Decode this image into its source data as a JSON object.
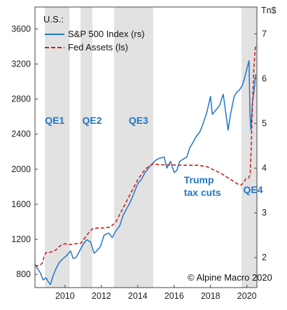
{
  "chart_data": {
    "type": "line",
    "title": "U.S.:",
    "left_unit": "",
    "right_unit": "Tn$",
    "copyright": "© Alpine Macro 2020",
    "x_ticks": [
      "2010",
      "2012",
      "2014",
      "2016",
      "2018",
      "2020"
    ],
    "xlim": [
      2008.35,
      2020.55
    ],
    "left_axis": {
      "ylim": [
        650,
        3850
      ],
      "ticks": [
        "800",
        "1200",
        "1600",
        "2000",
        "2400",
        "2800",
        "3200",
        "3600"
      ]
    },
    "right_axis": {
      "ylim": [
        1.33,
        7.6
      ],
      "ticks": [
        "2",
        "3",
        "4",
        "5",
        "6",
        "7"
      ]
    },
    "shaded_periods": [
      {
        "label": "QE1",
        "start": 2008.9,
        "end": 2010.25
      },
      {
        "label": "QE2",
        "start": 2010.85,
        "end": 2011.5
      },
      {
        "label": "QE3",
        "start": 2012.7,
        "end": 2014.85
      },
      {
        "label": "QE4",
        "start": 2019.7,
        "end": 2020.55
      }
    ],
    "annotations": [
      {
        "id": "trump-tax-cuts",
        "lines": [
          "Trump",
          "tax cuts"
        ],
        "x": 2017.5
      }
    ],
    "legend": {
      "position": "top-left"
    },
    "colors": {
      "sp500": "#1f77c8",
      "fed": "#cc1f1f",
      "band": "#e2e2e2",
      "label": "#2277c4"
    },
    "series": [
      {
        "name": "S&P 500 Index (rs)",
        "axis": "right",
        "style": "solid",
        "points": [
          [
            2008.35,
            1.85
          ],
          [
            2008.5,
            1.75
          ],
          [
            2008.65,
            1.65
          ],
          [
            2008.8,
            1.5
          ],
          [
            2008.95,
            1.55
          ],
          [
            2009.1,
            1.45
          ],
          [
            2009.2,
            1.4
          ],
          [
            2009.35,
            1.6
          ],
          [
            2009.5,
            1.75
          ],
          [
            2009.7,
            1.9
          ],
          [
            2009.9,
            1.98
          ],
          [
            2010.1,
            2.05
          ],
          [
            2010.3,
            2.15
          ],
          [
            2010.45,
            1.98
          ],
          [
            2010.6,
            2.0
          ],
          [
            2010.8,
            2.15
          ],
          [
            2011.0,
            2.3
          ],
          [
            2011.2,
            2.4
          ],
          [
            2011.4,
            2.35
          ],
          [
            2011.6,
            2.1
          ],
          [
            2011.75,
            2.15
          ],
          [
            2011.95,
            2.25
          ],
          [
            2012.15,
            2.5
          ],
          [
            2012.4,
            2.55
          ],
          [
            2012.6,
            2.45
          ],
          [
            2012.8,
            2.6
          ],
          [
            2013.0,
            2.7
          ],
          [
            2013.2,
            2.95
          ],
          [
            2013.4,
            3.1
          ],
          [
            2013.6,
            3.25
          ],
          [
            2013.8,
            3.45
          ],
          [
            2014.0,
            3.65
          ],
          [
            2014.2,
            3.75
          ],
          [
            2014.4,
            3.9
          ],
          [
            2014.6,
            4.0
          ],
          [
            2014.8,
            4.1
          ],
          [
            2015.0,
            4.18
          ],
          [
            2015.2,
            4.22
          ],
          [
            2015.45,
            4.25
          ],
          [
            2015.6,
            4.0
          ],
          [
            2015.8,
            4.15
          ],
          [
            2016.0,
            3.9
          ],
          [
            2016.15,
            3.95
          ],
          [
            2016.3,
            4.15
          ],
          [
            2016.5,
            4.2
          ],
          [
            2016.7,
            4.25
          ],
          [
            2016.85,
            4.45
          ],
          [
            2017.0,
            4.55
          ],
          [
            2017.2,
            4.7
          ],
          [
            2017.4,
            4.8
          ],
          [
            2017.6,
            5.0
          ],
          [
            2017.8,
            5.25
          ],
          [
            2018.0,
            5.6
          ],
          [
            2018.1,
            5.2
          ],
          [
            2018.3,
            5.3
          ],
          [
            2018.5,
            5.4
          ],
          [
            2018.7,
            5.65
          ],
          [
            2018.85,
            5.2
          ],
          [
            2018.97,
            4.85
          ],
          [
            2019.1,
            5.2
          ],
          [
            2019.3,
            5.6
          ],
          [
            2019.45,
            5.7
          ],
          [
            2019.6,
            5.75
          ],
          [
            2019.75,
            5.85
          ],
          [
            2019.9,
            6.05
          ],
          [
            2020.05,
            6.3
          ],
          [
            2020.12,
            6.4
          ],
          [
            2020.17,
            5.2
          ],
          [
            2020.22,
            4.85
          ],
          [
            2020.3,
            5.45
          ],
          [
            2020.4,
            5.75
          ],
          [
            2020.48,
            6.1
          ]
        ]
      },
      {
        "name": "Fed Assets (ls)",
        "axis": "left",
        "style": "dashed",
        "points": [
          [
            2008.35,
            900
          ],
          [
            2008.5,
            900
          ],
          [
            2008.65,
            910
          ],
          [
            2008.75,
            930
          ],
          [
            2008.85,
            1000
          ],
          [
            2008.95,
            1050
          ],
          [
            2009.1,
            1050
          ],
          [
            2009.3,
            1060
          ],
          [
            2009.5,
            1080
          ],
          [
            2009.75,
            1130
          ],
          [
            2010.0,
            1150
          ],
          [
            2010.25,
            1140
          ],
          [
            2010.6,
            1150
          ],
          [
            2010.9,
            1160
          ],
          [
            2011.2,
            1250
          ],
          [
            2011.5,
            1320
          ],
          [
            2011.8,
            1330
          ],
          [
            2012.1,
            1330
          ],
          [
            2012.5,
            1340
          ],
          [
            2012.8,
            1400
          ],
          [
            2013.1,
            1520
          ],
          [
            2013.4,
            1640
          ],
          [
            2013.7,
            1760
          ],
          [
            2014.0,
            1880
          ],
          [
            2014.3,
            1970
          ],
          [
            2014.6,
            2035
          ],
          [
            2014.85,
            2060
          ],
          [
            2015.3,
            2050
          ],
          [
            2015.8,
            2050
          ],
          [
            2016.3,
            2045
          ],
          [
            2016.8,
            2045
          ],
          [
            2017.3,
            2045
          ],
          [
            2017.8,
            2030
          ],
          [
            2018.2,
            1990
          ],
          [
            2018.6,
            1950
          ],
          [
            2018.9,
            1910
          ],
          [
            2019.2,
            1870
          ],
          [
            2019.5,
            1830
          ],
          [
            2019.7,
            1820
          ],
          [
            2019.8,
            1850
          ],
          [
            2019.95,
            1890
          ],
          [
            2020.1,
            1900
          ],
          [
            2020.18,
            1940
          ],
          [
            2020.24,
            2250
          ],
          [
            2020.3,
            2700
          ],
          [
            2020.38,
            3150
          ],
          [
            2020.46,
            3380
          ],
          [
            2020.52,
            3420
          ]
        ]
      }
    ]
  }
}
